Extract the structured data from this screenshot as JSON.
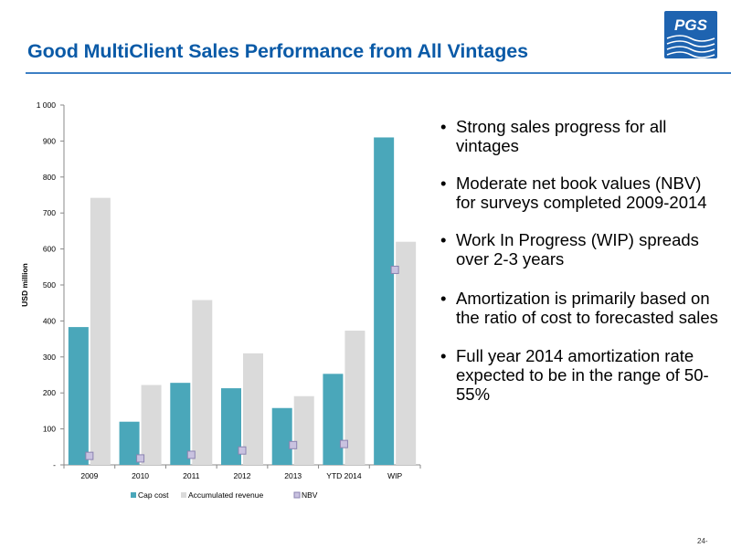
{
  "slide": {
    "title": "Good MultiClient Sales Performance from All Vintages",
    "logo_text": "PGS",
    "page_number": "24-",
    "bullets": [
      "Strong sales progress for all vintages",
      "Moderate net book values (NBV) for surveys completed 2009-2014",
      "Work In Progress (WIP) spreads over 2-3 years",
      "Amortization is primarily based on the ratio of cost to forecasted sales",
      "Full year 2014 amortization rate expected to be in the range of 50-55%"
    ]
  },
  "colors": {
    "title": "#0a5aa7",
    "cap_cost": "#4aa7ba",
    "accumulated_revenue": "#dadada",
    "nbv_fill": "#c9c2e0",
    "nbv_stroke": "#8b83b0",
    "logo": "#1e63b0"
  },
  "chart_data": {
    "type": "bar",
    "ylabel": "USD million",
    "ylim": [
      0,
      1000
    ],
    "y_ticks": [
      0,
      100,
      200,
      300,
      400,
      500,
      600,
      700,
      800,
      900,
      1000
    ],
    "y_tick_labels": [
      "-",
      "100",
      "200",
      "300",
      "400",
      "500",
      "600",
      "700",
      "800",
      "900",
      "1 000"
    ],
    "categories": [
      "2009",
      "2010",
      "2011",
      "2012",
      "2013",
      "YTD 2014",
      "WIP"
    ],
    "series": [
      {
        "name": "Cap cost",
        "type": "bar",
        "values": [
          383,
          120,
          228,
          213,
          158,
          253,
          910
        ]
      },
      {
        "name": "Accumulated revenue",
        "type": "bar",
        "values": [
          742,
          222,
          458,
          310,
          191,
          373,
          620
        ]
      },
      {
        "name": "NBV",
        "type": "marker",
        "values": [
          25,
          18,
          28,
          40,
          55,
          58,
          542
        ]
      }
    ],
    "legend_position": "bottom",
    "grid": false
  }
}
